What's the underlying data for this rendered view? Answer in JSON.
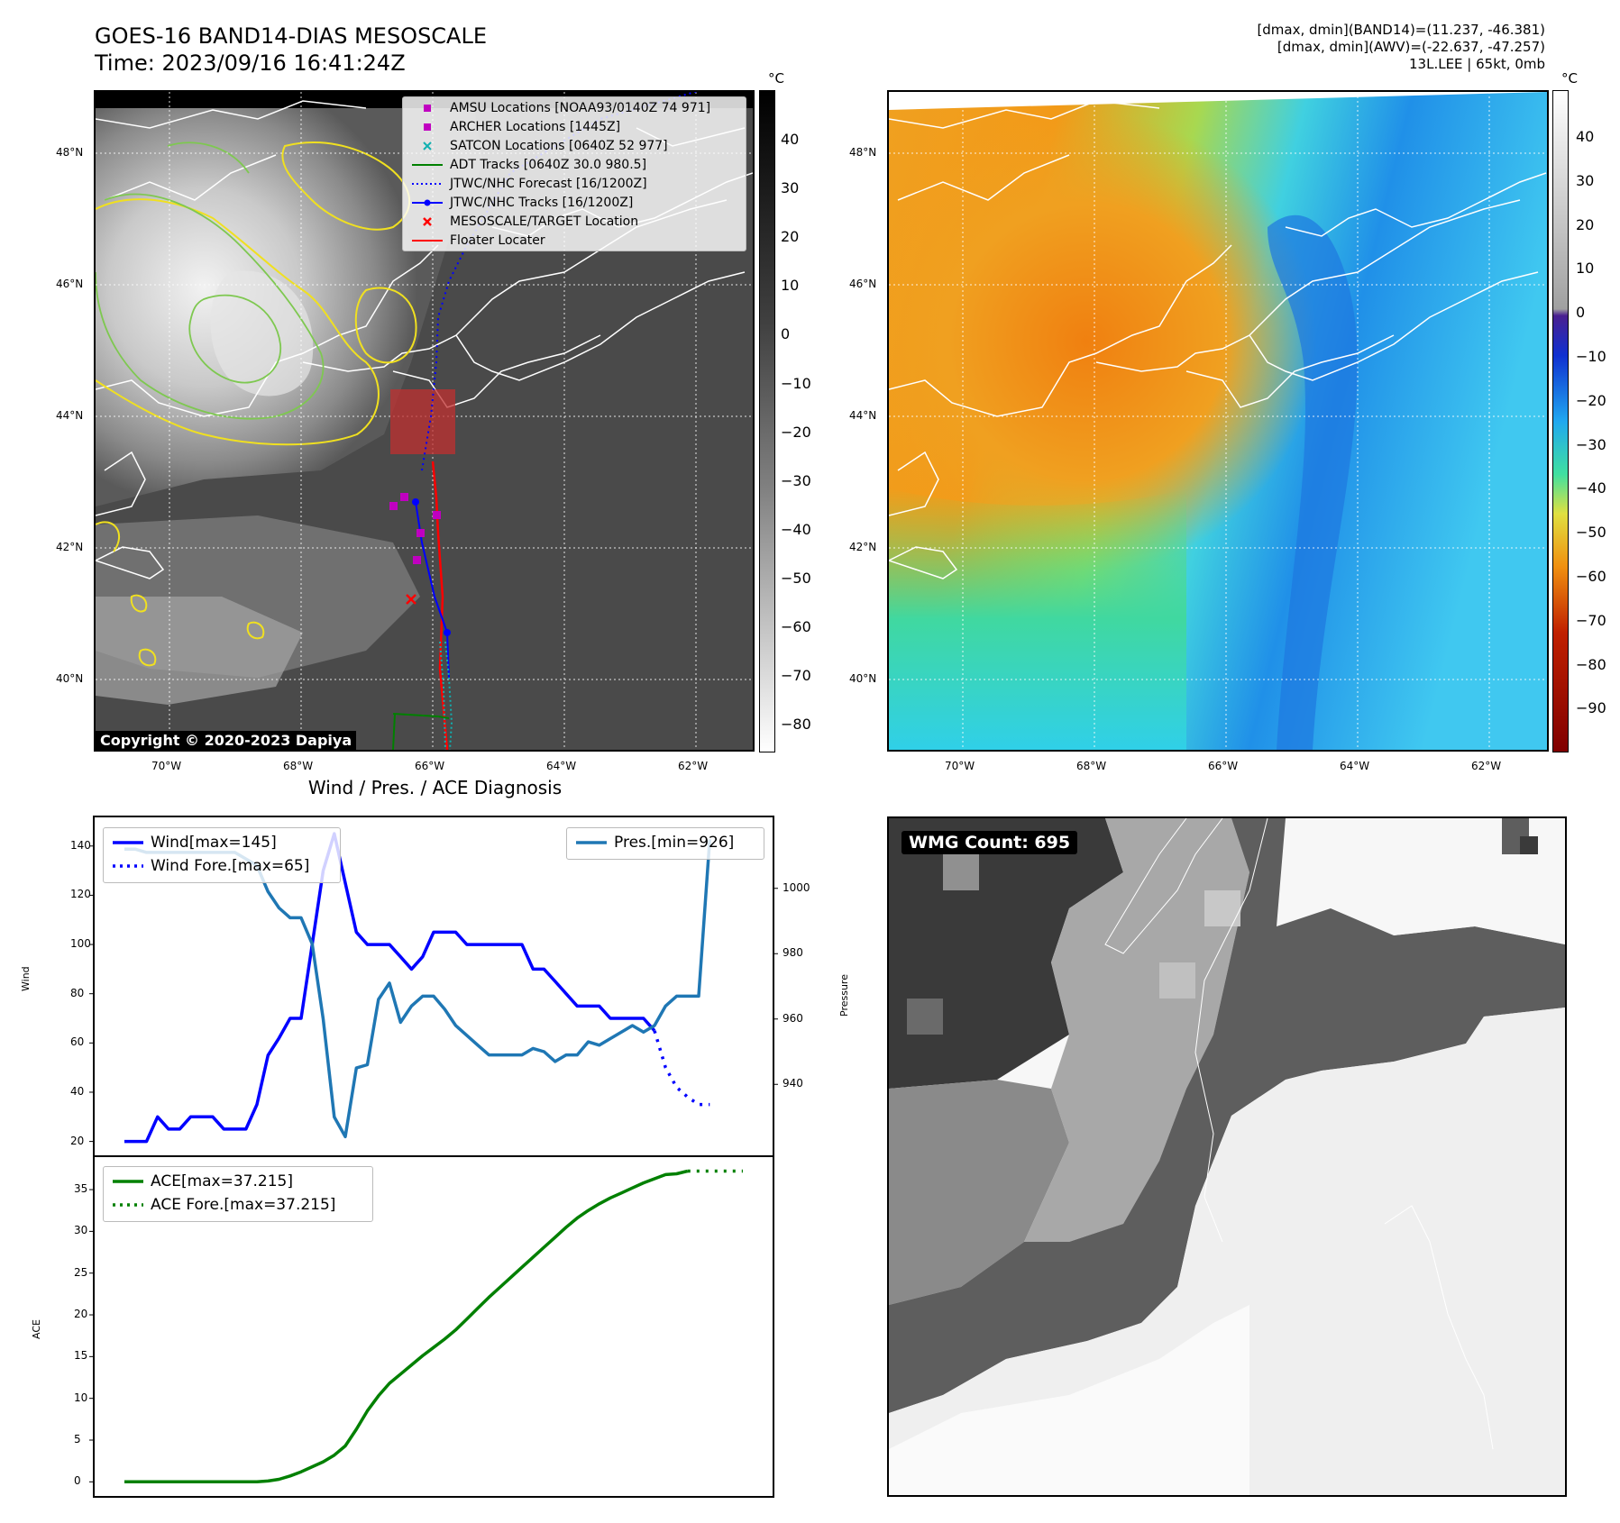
{
  "header": {
    "title_line1": "GOES-16 BAND14-DIAS MESOSCALE",
    "title_line2": "Time: 2023/09/16 16:41:24Z",
    "info_line1": "[dmax, dmin](BAND14)=(11.237, -46.381)",
    "info_line2": "[dmax, dmin](AWV)=(-22.637, -47.257)",
    "info_line3": "13L.LEE | 65kt, 0mb"
  },
  "map_axes": {
    "lon_ticks": [
      "70°W",
      "68°W",
      "66°W",
      "64°W",
      "62°W"
    ],
    "lat_ticks": [
      "48°N",
      "46°N",
      "44°N",
      "42°N",
      "40°N"
    ]
  },
  "ir_colorbar": {
    "unit": "°C",
    "ticks": [
      "40",
      "30",
      "20",
      "10",
      "0",
      "−10",
      "−20",
      "−30",
      "−40",
      "−50",
      "−60",
      "−70",
      "−80"
    ]
  },
  "wv_colorbar": {
    "unit": "°C",
    "ticks": [
      "40",
      "30",
      "20",
      "10",
      "0",
      "−10",
      "−20",
      "−30",
      "−40",
      "−50",
      "−60",
      "−70",
      "−80",
      "−90"
    ]
  },
  "ir_legend": {
    "items": [
      {
        "label": "AMSU Locations [NOAA93/0140Z 74 971]",
        "symbol": "square",
        "color": "#c000c0"
      },
      {
        "label": "ARCHER Locations [1445Z]",
        "symbol": "square",
        "color": "#c000c0"
      },
      {
        "label": "SATCON Locations [0640Z 52 977]",
        "symbol": "x",
        "color": "#10b0b0"
      },
      {
        "label": "ADT Tracks [0640Z 30.0 980.5]",
        "symbol": "line",
        "color": "#008000"
      },
      {
        "label": "JTWC/NHC Forecast [16/1200Z]",
        "symbol": "dotted",
        "color": "#0000ff"
      },
      {
        "label": "JTWC/NHC Tracks [16/1200Z]",
        "symbol": "line-dot",
        "color": "#0000ff"
      },
      {
        "label": "MESOSCALE/TARGET Location",
        "symbol": "x",
        "color": "#ff0000"
      },
      {
        "label": "Floater Locater",
        "symbol": "line",
        "color": "#ff0000"
      }
    ]
  },
  "copyright": "Copyright © 2020-2023 Dapiya",
  "wmg": {
    "label": "WMG Count: 695"
  },
  "chart_data": [
    {
      "type": "line",
      "title": "Wind / Pres. / ACE Diagnosis",
      "ylabel": "Wind",
      "ylabel_right": "Pressure",
      "ylim": [
        14,
        152
      ],
      "ylim_right": [
        918,
        1022
      ],
      "yticks": [
        20,
        40,
        60,
        80,
        100,
        120,
        140
      ],
      "yticks_right": [
        940,
        960,
        980,
        1000
      ],
      "legend_left": [
        "Wind[max=145]",
        "Wind Fore.[max=65]"
      ],
      "legend_right": [
        "Pres.[min=926]"
      ],
      "series": [
        {
          "name": "Wind[max=145]",
          "color": "#0000ff",
          "style": "solid",
          "values": [
            20,
            20,
            20,
            30,
            25,
            25,
            30,
            30,
            30,
            25,
            25,
            25,
            35,
            55,
            62,
            70,
            70,
            100,
            130,
            145,
            125,
            105,
            100,
            100,
            100,
            95,
            90,
            95,
            105,
            105,
            105,
            100,
            100,
            100,
            100,
            100,
            100,
            90,
            90,
            85,
            80,
            75,
            75,
            75,
            70,
            70,
            70,
            70,
            65
          ]
        },
        {
          "name": "Wind Fore.[max=65]",
          "color": "#0000ff",
          "style": "dotted",
          "values": [
            65,
            50,
            42,
            38,
            35,
            35
          ],
          "offset": 48
        },
        {
          "name": "Pres.[min=926]",
          "color": "#1f77b4",
          "style": "solid",
          "axis": "right",
          "values": [
            1012,
            1012,
            1011,
            1011,
            1011,
            1011,
            1011,
            1011,
            1011,
            1011,
            1011,
            1009,
            1007,
            999,
            994,
            991,
            991,
            983,
            960,
            930,
            924,
            945,
            946,
            966,
            971,
            959,
            964,
            967,
            967,
            963,
            958,
            955,
            952,
            949,
            949,
            949,
            949,
            951,
            950,
            947,
            949,
            949,
            953,
            952,
            954,
            956,
            958,
            956,
            958,
            964,
            967,
            967,
            967,
            1015
          ]
        }
      ]
    },
    {
      "type": "line",
      "ylabel": "ACE",
      "ylim": [
        -1.8,
        39
      ],
      "yticks": [
        0,
        5,
        10,
        15,
        20,
        25,
        30,
        35
      ],
      "legend": [
        "ACE[max=37.215]",
        "ACE Fore.[max=37.215]"
      ],
      "series": [
        {
          "name": "ACE[max=37.215]",
          "color": "#008000",
          "style": "solid",
          "values": [
            0,
            0,
            0,
            0,
            0,
            0,
            0,
            0,
            0,
            0,
            0,
            0,
            0,
            0.1,
            0.3,
            0.7,
            1.2,
            1.8,
            2.4,
            3.2,
            4.3,
            6.3,
            8.5,
            10.3,
            11.8,
            12.9,
            14,
            15.1,
            16.1,
            17.1,
            18.2,
            19.5,
            20.8,
            22.1,
            23.3,
            24.5,
            25.7,
            26.9,
            28.1,
            29.3,
            30.5,
            31.6,
            32.5,
            33.3,
            34,
            34.6,
            35.2,
            35.8,
            36.3,
            36.8,
            36.9,
            37.215
          ]
        },
        {
          "name": "ACE Fore.[max=37.215]",
          "color": "#008000",
          "style": "dotted",
          "values": [
            37.215,
            37.215,
            37.215,
            37.215,
            37.215,
            37.215
          ],
          "offset": 51
        }
      ]
    }
  ]
}
